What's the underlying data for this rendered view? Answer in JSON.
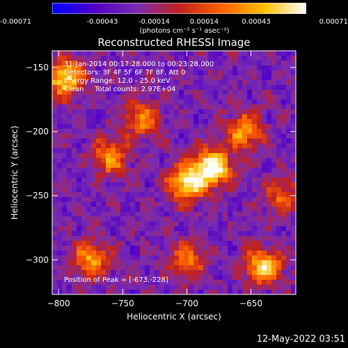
{
  "colorbar": {
    "min": -0.00071,
    "max": 0.00071,
    "tick_labels": [
      "-0.00071",
      "-0.00043",
      "-0.00014",
      "0.00014",
      "0.00043",
      "0.00071"
    ],
    "tick_values": [
      -0.00071,
      -0.00043,
      -0.00014,
      0.00014,
      0.00043,
      0.00071
    ],
    "unit_label": "(photons cm⁻² s⁻¹ asec⁻²)",
    "colors": [
      "#0000ff",
      "#5000c8",
      "#7a2cb0",
      "#c02020",
      "#ff6000",
      "#ffc000",
      "#ffffff"
    ]
  },
  "chart_data": {
    "type": "heatmap",
    "title": "Reconstructed RHESSI Image",
    "xlabel": "Heliocentric X (arcsec)",
    "ylabel": "Heliocentric Y (arcsec)",
    "xlim": [
      -805,
      -615
    ],
    "ylim": [
      -327,
      -137
    ],
    "x_ticks": [
      -800,
      -750,
      -700,
      -650
    ],
    "y_ticks": [
      -150,
      -200,
      -250,
      -300
    ],
    "x_tick_labels": [
      "−800",
      "−750",
      "−700",
      "−650"
    ],
    "y_tick_labels": [
      "−150",
      "−200",
      "−250",
      "−300"
    ],
    "peak": [
      -673,
      -228
    ],
    "hot_spots": [
      {
        "x": -680,
        "y": -228,
        "level": 1.0
      },
      {
        "x": -700,
        "y": -240,
        "level": 0.85
      },
      {
        "x": -795,
        "y": -158,
        "level": 0.85
      },
      {
        "x": -655,
        "y": -200,
        "level": 0.65
      },
      {
        "x": -760,
        "y": -220,
        "level": 0.6
      },
      {
        "x": -640,
        "y": -305,
        "level": 0.8
      },
      {
        "x": -775,
        "y": -300,
        "level": 0.6
      },
      {
        "x": -735,
        "y": -190,
        "level": 0.55
      },
      {
        "x": -700,
        "y": -300,
        "level": 0.5
      },
      {
        "x": -625,
        "y": -250,
        "level": 0.45
      }
    ]
  },
  "overlay": {
    "time_range": "31-Jan-2014 00:17:28.000 to 00:23:28.000",
    "detectors": "Detectors: 3F 4F 5F 6F 7F 8F, Att 0",
    "energy": "Energy Range: 12.0 - 25.0 keV",
    "method": "Clean     Total counts: 2.97E+04",
    "peak": "Position of Peak = [-673,-228]"
  },
  "timestamp": "12-May-2022 03:51"
}
